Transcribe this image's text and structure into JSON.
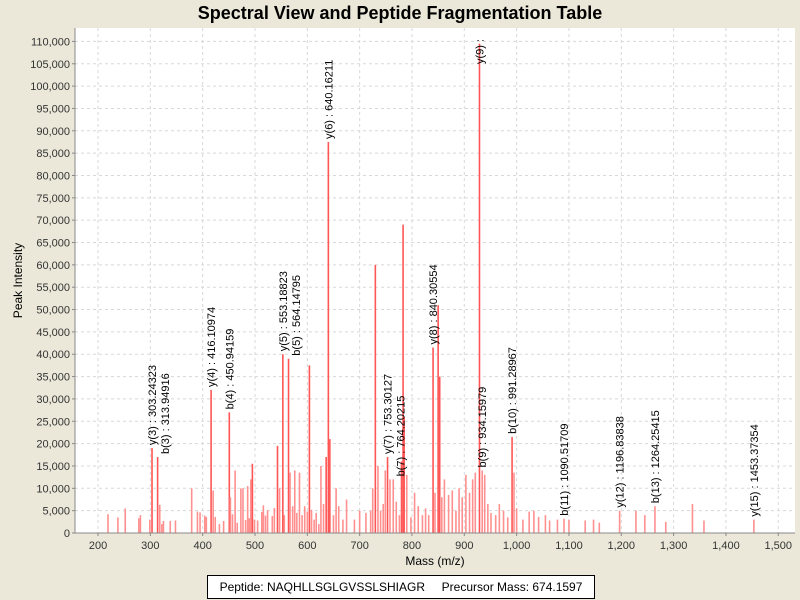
{
  "chart_data": {
    "type": "bar",
    "title": "Spectral View and Peptide Fragmentation Table",
    "xlabel": "Mass (m/z)",
    "ylabel": "Peak Intensity",
    "xlim": [
      156,
      1532
    ],
    "ylim": [
      0,
      113000
    ],
    "xticks": [
      200,
      300,
      400,
      500,
      600,
      700,
      800,
      900,
      1000,
      1100,
      1200,
      1300,
      1400,
      1500
    ],
    "xtick_labels": [
      "200",
      "300",
      "400",
      "500",
      "600",
      "700",
      "800",
      "900",
      "1,000",
      "1,100",
      "1,200",
      "1,300",
      "1,400",
      "1,500"
    ],
    "yticks": [
      0,
      5000,
      10000,
      15000,
      20000,
      25000,
      30000,
      35000,
      40000,
      45000,
      50000,
      55000,
      60000,
      65000,
      70000,
      75000,
      80000,
      85000,
      90000,
      95000,
      100000,
      105000,
      110000
    ],
    "ytick_labels": [
      "0",
      "5,000",
      "10,000",
      "15,000",
      "20,000",
      "25,000",
      "30,000",
      "35,000",
      "40,000",
      "45,000",
      "50,000",
      "55,000",
      "60,000",
      "65,000",
      "70,000",
      "75,000",
      "80,000",
      "85,000",
      "90,000",
      "95,000",
      "100,000",
      "105,000",
      "110,000"
    ],
    "grid": true,
    "color": "#ff5555",
    "peaks": [
      [
        219,
        4200
      ],
      [
        238,
        3500
      ],
      [
        252,
        5500
      ],
      [
        278,
        3300
      ],
      [
        281,
        4000
      ],
      [
        299,
        3000
      ],
      [
        303.2,
        19000
      ],
      [
        313.9,
        17000
      ],
      [
        318,
        6300
      ],
      [
        322,
        2000
      ],
      [
        325,
        2700
      ],
      [
        338,
        2700
      ],
      [
        348,
        2800
      ],
      [
        379,
        10000
      ],
      [
        390,
        4800
      ],
      [
        395,
        4600
      ],
      [
        404,
        3900
      ],
      [
        407,
        3600
      ],
      [
        416.1,
        32000
      ],
      [
        420,
        9500
      ],
      [
        424,
        3600
      ],
      [
        432,
        2000
      ],
      [
        440,
        2700
      ],
      [
        450.9,
        27000
      ],
      [
        453,
        8000
      ],
      [
        457,
        4200
      ],
      [
        462,
        14000
      ],
      [
        466,
        2300
      ],
      [
        473,
        10000
      ],
      [
        477,
        10000
      ],
      [
        482,
        2900
      ],
      [
        486,
        10500
      ],
      [
        489,
        3300
      ],
      [
        492,
        12000
      ],
      [
        495,
        15500
      ],
      [
        499,
        3000
      ],
      [
        505,
        2800
      ],
      [
        513,
        4700
      ],
      [
        516,
        6200
      ],
      [
        520,
        3900
      ],
      [
        524,
        5100
      ],
      [
        533,
        3800
      ],
      [
        537,
        5600
      ],
      [
        543,
        19500
      ],
      [
        547,
        10000
      ],
      [
        553.2,
        40000
      ],
      [
        556,
        4000
      ],
      [
        564.1,
        39000
      ],
      [
        567,
        13500
      ],
      [
        572,
        6000
      ],
      [
        576,
        14000
      ],
      [
        580,
        4500
      ],
      [
        585,
        13500
      ],
      [
        590,
        4000
      ],
      [
        595,
        6000
      ],
      [
        600,
        4800
      ],
      [
        604,
        37500
      ],
      [
        608,
        5200
      ],
      [
        613,
        3000
      ],
      [
        617,
        4500
      ],
      [
        622,
        2000
      ],
      [
        626,
        15000
      ],
      [
        631,
        6500
      ],
      [
        636,
        17000
      ],
      [
        640.2,
        87500
      ],
      [
        643,
        21000
      ],
      [
        650,
        4000
      ],
      [
        655,
        10000
      ],
      [
        660,
        6000
      ],
      [
        668,
        3000
      ],
      [
        675,
        7500
      ],
      [
        690,
        3000
      ],
      [
        700,
        5000
      ],
      [
        712,
        4500
      ],
      [
        721,
        5000
      ],
      [
        725,
        10000
      ],
      [
        730,
        60000
      ],
      [
        735,
        15000
      ],
      [
        740,
        5000
      ],
      [
        745,
        6500
      ],
      [
        749,
        14000
      ],
      [
        753.3,
        17000
      ],
      [
        758,
        12000
      ],
      [
        764.2,
        12000
      ],
      [
        770,
        7000
      ],
      [
        776,
        4000
      ],
      [
        780,
        16000
      ],
      [
        783,
        69000
      ],
      [
        785,
        26000
      ],
      [
        790,
        13000
      ],
      [
        798,
        3500
      ],
      [
        805,
        9000
      ],
      [
        812,
        6000
      ],
      [
        820,
        4000
      ],
      [
        826,
        5500
      ],
      [
        832,
        4000
      ],
      [
        840.3,
        41500
      ],
      [
        844,
        9000
      ],
      [
        850,
        51000
      ],
      [
        853,
        35000
      ],
      [
        857,
        8000
      ],
      [
        862,
        12000
      ],
      [
        870,
        8500
      ],
      [
        877,
        9500
      ],
      [
        884,
        5000
      ],
      [
        890,
        10000
      ],
      [
        896,
        8000
      ],
      [
        903,
        13000
      ],
      [
        910,
        9000
      ],
      [
        916,
        12000
      ],
      [
        921,
        13500
      ],
      [
        929,
        109500
      ],
      [
        934.2,
        14000
      ],
      [
        939,
        13000
      ],
      [
        945,
        6500
      ],
      [
        951,
        4500
      ],
      [
        960,
        4000
      ],
      [
        967,
        6500
      ],
      [
        975,
        5000
      ],
      [
        983,
        3500
      ],
      [
        991.3,
        21500
      ],
      [
        995,
        13500
      ],
      [
        1000,
        5500
      ],
      [
        1012,
        3000
      ],
      [
        1024,
        4800
      ],
      [
        1033,
        5000
      ],
      [
        1042,
        3600
      ],
      [
        1055,
        4000
      ],
      [
        1063,
        2800
      ],
      [
        1078,
        3000
      ],
      [
        1090.5,
        3200
      ],
      [
        1100,
        3000
      ],
      [
        1131,
        2800
      ],
      [
        1147,
        3000
      ],
      [
        1158,
        2300
      ],
      [
        1196.8,
        5000
      ],
      [
        1228,
        5000
      ],
      [
        1245,
        4000
      ],
      [
        1264.3,
        6000
      ],
      [
        1285,
        2500
      ],
      [
        1336,
        6500
      ],
      [
        1358,
        2800
      ],
      [
        1453.4,
        3000
      ]
    ],
    "annotations": [
      {
        "mz": 303.24323,
        "label": "y(3) : 303.24323"
      },
      {
        "mz": 313.94916,
        "label": "b(3) : 313.94916"
      },
      {
        "mz": 416.10974,
        "label": "y(4) : 416.10974"
      },
      {
        "mz": 450.94159,
        "label": "b(4) : 450.94159"
      },
      {
        "mz": 553.18823,
        "label": "y(5) : 553.18823"
      },
      {
        "mz": 564.14795,
        "label": "b(5) : 564.14795"
      },
      {
        "mz": 640.16211,
        "label": "y(6) : 640.16211"
      },
      {
        "mz": 753.30127,
        "label": "y(7) : 753.30127"
      },
      {
        "mz": 764.20215,
        "label": "b(7) : 764.20215"
      },
      {
        "mz": 840.30554,
        "label": "y(8) : 840.30554"
      },
      {
        "mz": 929,
        "label": "y(9) :"
      },
      {
        "mz": 934.15979,
        "label": "b(9) : 934.15979"
      },
      {
        "mz": 991.28967,
        "label": "b(10) : 991.28967"
      },
      {
        "mz": 1090.51709,
        "label": "b(11) : 1090.51709"
      },
      {
        "mz": 1196.83838,
        "label": "y(12) : 1196.83838"
      },
      {
        "mz": 1264.25415,
        "label": "b(13) : 1264.25415"
      },
      {
        "mz": 1453.37354,
        "label": "y(15) : 1453.37354"
      }
    ]
  },
  "legend": {
    "text": "Peptide: NAQHLLSGLGVSSLSHIAGR     Precursor Mass: 674.1597"
  }
}
